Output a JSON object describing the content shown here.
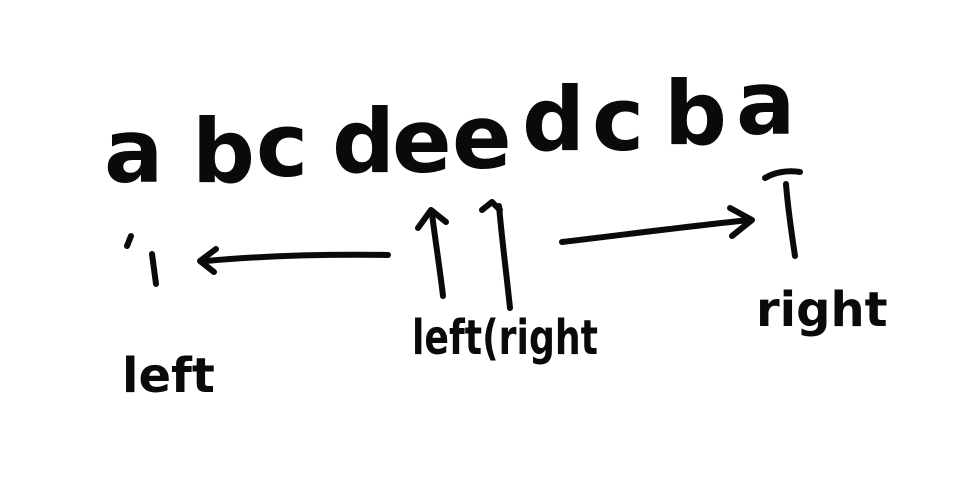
{
  "string": {
    "characters": [
      "a",
      "b",
      "c",
      "d",
      "e",
      "e",
      "d",
      "c",
      "b",
      "a"
    ]
  },
  "labels": {
    "left": "left",
    "left_right": "left(right",
    "right": "right"
  },
  "colors": {
    "ink": "#0a0a0a",
    "background": "#ffffff"
  }
}
